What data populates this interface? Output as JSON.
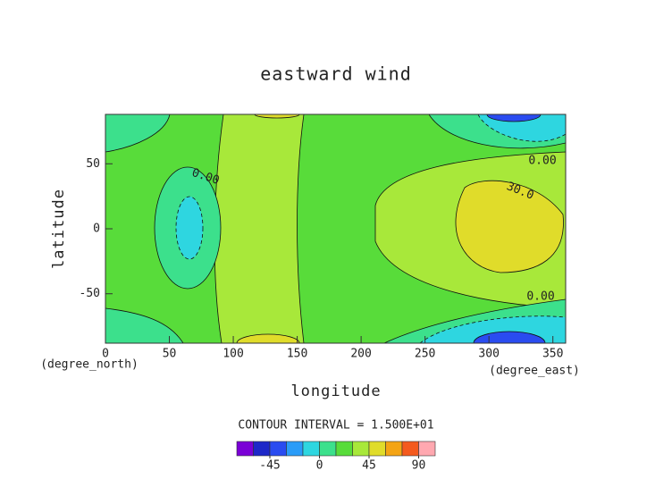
{
  "chart_data": {
    "type": "contour",
    "title": "eastward wind",
    "xlabel": "longitude",
    "ylabel": "latitude",
    "xunit": "(degree_east)",
    "yunit": "(degree_north)",
    "xlim": [
      0,
      360
    ],
    "ylim": [
      -88,
      88
    ],
    "xticks": [
      0,
      50,
      100,
      150,
      200,
      250,
      300,
      350
    ],
    "yticks": [
      -50,
      0,
      50
    ],
    "contour_labels": [
      {
        "value": 0,
        "label": "0.00"
      },
      {
        "value": 30,
        "label": "30.0"
      },
      {
        "value": 0,
        "label": "0.00"
      },
      {
        "value": 0,
        "label": "0.00"
      }
    ],
    "contour_interval_text": "CONTOUR INTERVAL = 1.500E+01",
    "colorbar": {
      "levels": [
        -75,
        -60,
        -45,
        -30,
        -15,
        0,
        15,
        30,
        45,
        60,
        75,
        90,
        105
      ],
      "colors": [
        "#7a00d6",
        "#1e28c8",
        "#2a4cf0",
        "#2a9cf8",
        "#2ed6e0",
        "#3ce08c",
        "#58dc3a",
        "#a8e83a",
        "#e0dc2a",
        "#f4a414",
        "#f45a1e",
        "#ffa8b0"
      ],
      "ticks": [
        -45,
        0,
        45,
        90
      ]
    }
  }
}
